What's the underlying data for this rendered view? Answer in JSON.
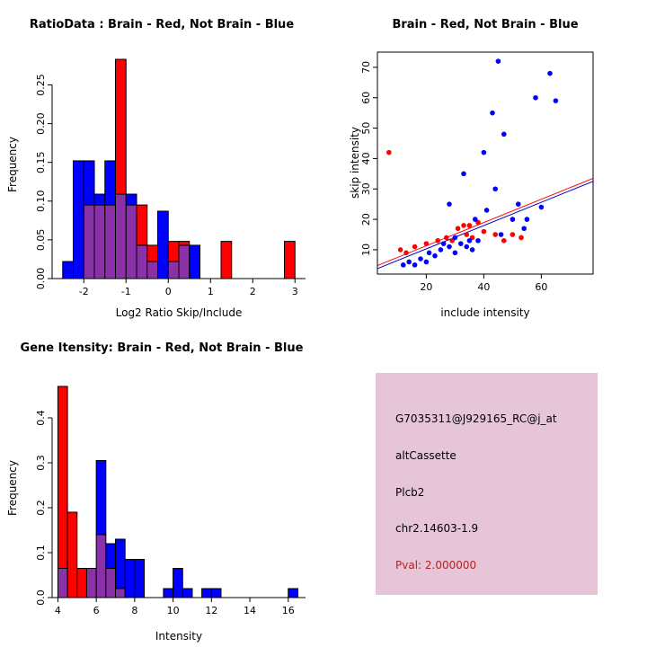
{
  "window": {
    "background": "#FFFFFF"
  },
  "chart_data": [
    {
      "type": "bar",
      "subtype": "overlaid-histogram",
      "title": "RatioData : Brain - Red, Not Brain - Blue",
      "xlabel": "Log2 Ratio Skip/Include",
      "ylabel": "Frequency",
      "xlim": [
        -2.75,
        3.25
      ],
      "ylim": [
        0,
        0.29
      ],
      "xticks": [
        -2,
        -1,
        0,
        1,
        2,
        3
      ],
      "yticks": [
        0,
        0.05,
        0.1,
        0.15,
        0.2,
        0.25
      ],
      "ytick_labels": [
        "0.00",
        "0.05",
        "0.10",
        "0.15",
        "0.20",
        "0.25"
      ],
      "bin_width": 0.25,
      "legend_meaning": "Brain = red, Not Brain = blue, overlap = purple",
      "colors": {
        "red": "#FF0000",
        "blue": "#0000FF",
        "overlap": "#8B31A8"
      },
      "bins": [
        {
          "x": -2.5,
          "red": 0,
          "blue": 0.022
        },
        {
          "x": -2.25,
          "red": 0,
          "blue": 0.152
        },
        {
          "x": -2.0,
          "red": 0.095,
          "blue": 0.152
        },
        {
          "x": -1.75,
          "red": 0.095,
          "blue": 0.109
        },
        {
          "x": -1.5,
          "red": 0.095,
          "blue": 0.152
        },
        {
          "x": -1.25,
          "red": 0.283,
          "blue": 0.109
        },
        {
          "x": -1.0,
          "red": 0.095,
          "blue": 0.109
        },
        {
          "x": -0.75,
          "red": 0.095,
          "blue": 0.043
        },
        {
          "x": -0.5,
          "red": 0.043,
          "blue": 0.022
        },
        {
          "x": -0.25,
          "red": 0,
          "blue": 0.087
        },
        {
          "x": 0.0,
          "red": 0.048,
          "blue": 0.022
        },
        {
          "x": 0.25,
          "red": 0.048,
          "blue": 0.043
        },
        {
          "x": 0.5,
          "red": 0,
          "blue": 0.043
        },
        {
          "x": 1.25,
          "red": 0.048,
          "blue": 0
        },
        {
          "x": 2.75,
          "red": 0.048,
          "blue": 0
        }
      ]
    },
    {
      "type": "scatter",
      "title": "Brain - Red, Not Brain - Blue",
      "xlabel": "include intensity",
      "ylabel": "skip intensity",
      "xlim": [
        3,
        78
      ],
      "ylim": [
        2,
        75
      ],
      "xticks": [
        20,
        40,
        60
      ],
      "yticks": [
        10,
        20,
        30,
        40,
        50,
        60,
        70
      ],
      "series": [
        {
          "name": "Brain",
          "color": "#FF0000",
          "points": [
            [
              7,
              42
            ],
            [
              11,
              10
            ],
            [
              13,
              9
            ],
            [
              16,
              11
            ],
            [
              20,
              12
            ],
            [
              24,
              13
            ],
            [
              27,
              14
            ],
            [
              29,
              13
            ],
            [
              31,
              17
            ],
            [
              33,
              18
            ],
            [
              34,
              15
            ],
            [
              35,
              18
            ],
            [
              36,
              14
            ],
            [
              38,
              19
            ],
            [
              40,
              16
            ],
            [
              44,
              15
            ],
            [
              47,
              13
            ],
            [
              50,
              15
            ],
            [
              53,
              14
            ]
          ]
        },
        {
          "name": "Not Brain",
          "color": "#0000FF",
          "points": [
            [
              12,
              5
            ],
            [
              14,
              6
            ],
            [
              16,
              5
            ],
            [
              18,
              7
            ],
            [
              20,
              6
            ],
            [
              21,
              9
            ],
            [
              23,
              8
            ],
            [
              25,
              10
            ],
            [
              26,
              12
            ],
            [
              28,
              11
            ],
            [
              28,
              25
            ],
            [
              30,
              9
            ],
            [
              30,
              14
            ],
            [
              32,
              12
            ],
            [
              33,
              35
            ],
            [
              34,
              11
            ],
            [
              35,
              13
            ],
            [
              36,
              10
            ],
            [
              37,
              20
            ],
            [
              38,
              13
            ],
            [
              40,
              42
            ],
            [
              41,
              23
            ],
            [
              43,
              55
            ],
            [
              44,
              30
            ],
            [
              45,
              72
            ],
            [
              46,
              15
            ],
            [
              47,
              48
            ],
            [
              50,
              20
            ],
            [
              52,
              25
            ],
            [
              54,
              17
            ],
            [
              55,
              20
            ],
            [
              58,
              60
            ],
            [
              60,
              24
            ],
            [
              63,
              68
            ],
            [
              65,
              59
            ]
          ]
        }
      ],
      "fit_lines": [
        {
          "color": "#FF0000",
          "x1": 3,
          "y1": 4.8,
          "x2": 78,
          "y2": 33.5
        },
        {
          "color": "#0000CD",
          "x1": 3,
          "y1": 3.8,
          "x2": 78,
          "y2": 32.5
        }
      ]
    },
    {
      "type": "bar",
      "subtype": "overlaid-histogram",
      "title": "Gene Itensity: Brain - Red, Not Brain - Blue",
      "xlabel": "Intensity",
      "ylabel": "Frequency",
      "xlim": [
        3.7,
        16.9
      ],
      "ylim": [
        0,
        0.48
      ],
      "xticks": [
        4,
        6,
        8,
        10,
        12,
        14,
        16
      ],
      "yticks": [
        0,
        0.1,
        0.2,
        0.3,
        0.4
      ],
      "ytick_labels": [
        "0.0",
        "0.1",
        "0.2",
        "0.3",
        "0.4"
      ],
      "bin_width": 0.5,
      "legend_meaning": "Brain = red, Not Brain = blue, overlap = purple",
      "colors": {
        "red": "#FF0000",
        "blue": "#0000FF",
        "overlap": "#8B31A8"
      },
      "bins": [
        {
          "x": 4.0,
          "red": 0.47,
          "blue": 0.065
        },
        {
          "x": 4.5,
          "red": 0.19,
          "blue": 0
        },
        {
          "x": 5.0,
          "red": 0.065,
          "blue": 0
        },
        {
          "x": 5.5,
          "red": 0.065,
          "blue": 0.065
        },
        {
          "x": 6.0,
          "red": 0.14,
          "blue": 0.305
        },
        {
          "x": 6.5,
          "red": 0.065,
          "blue": 0.12
        },
        {
          "x": 7.0,
          "red": 0.02,
          "blue": 0.13
        },
        {
          "x": 7.5,
          "red": 0,
          "blue": 0.085
        },
        {
          "x": 8.0,
          "red": 0,
          "blue": 0.085
        },
        {
          "x": 9.5,
          "red": 0,
          "blue": 0.02
        },
        {
          "x": 10.0,
          "red": 0,
          "blue": 0.065
        },
        {
          "x": 10.5,
          "red": 0,
          "blue": 0.02
        },
        {
          "x": 11.5,
          "red": 0,
          "blue": 0.02
        },
        {
          "x": 12.0,
          "red": 0,
          "blue": 0.02
        },
        {
          "x": 16.0,
          "red": 0,
          "blue": 0.02
        }
      ]
    }
  ],
  "info_panel": {
    "bg_color": "#E6C5D8",
    "probe_id": "G7035311@J929165_RC@j_at",
    "event_type": "altCassette",
    "gene": "Plcb2",
    "location": "chr2.14603-1.9",
    "pval": "Pval: 2.000000",
    "pval_color": "#B22222"
  }
}
